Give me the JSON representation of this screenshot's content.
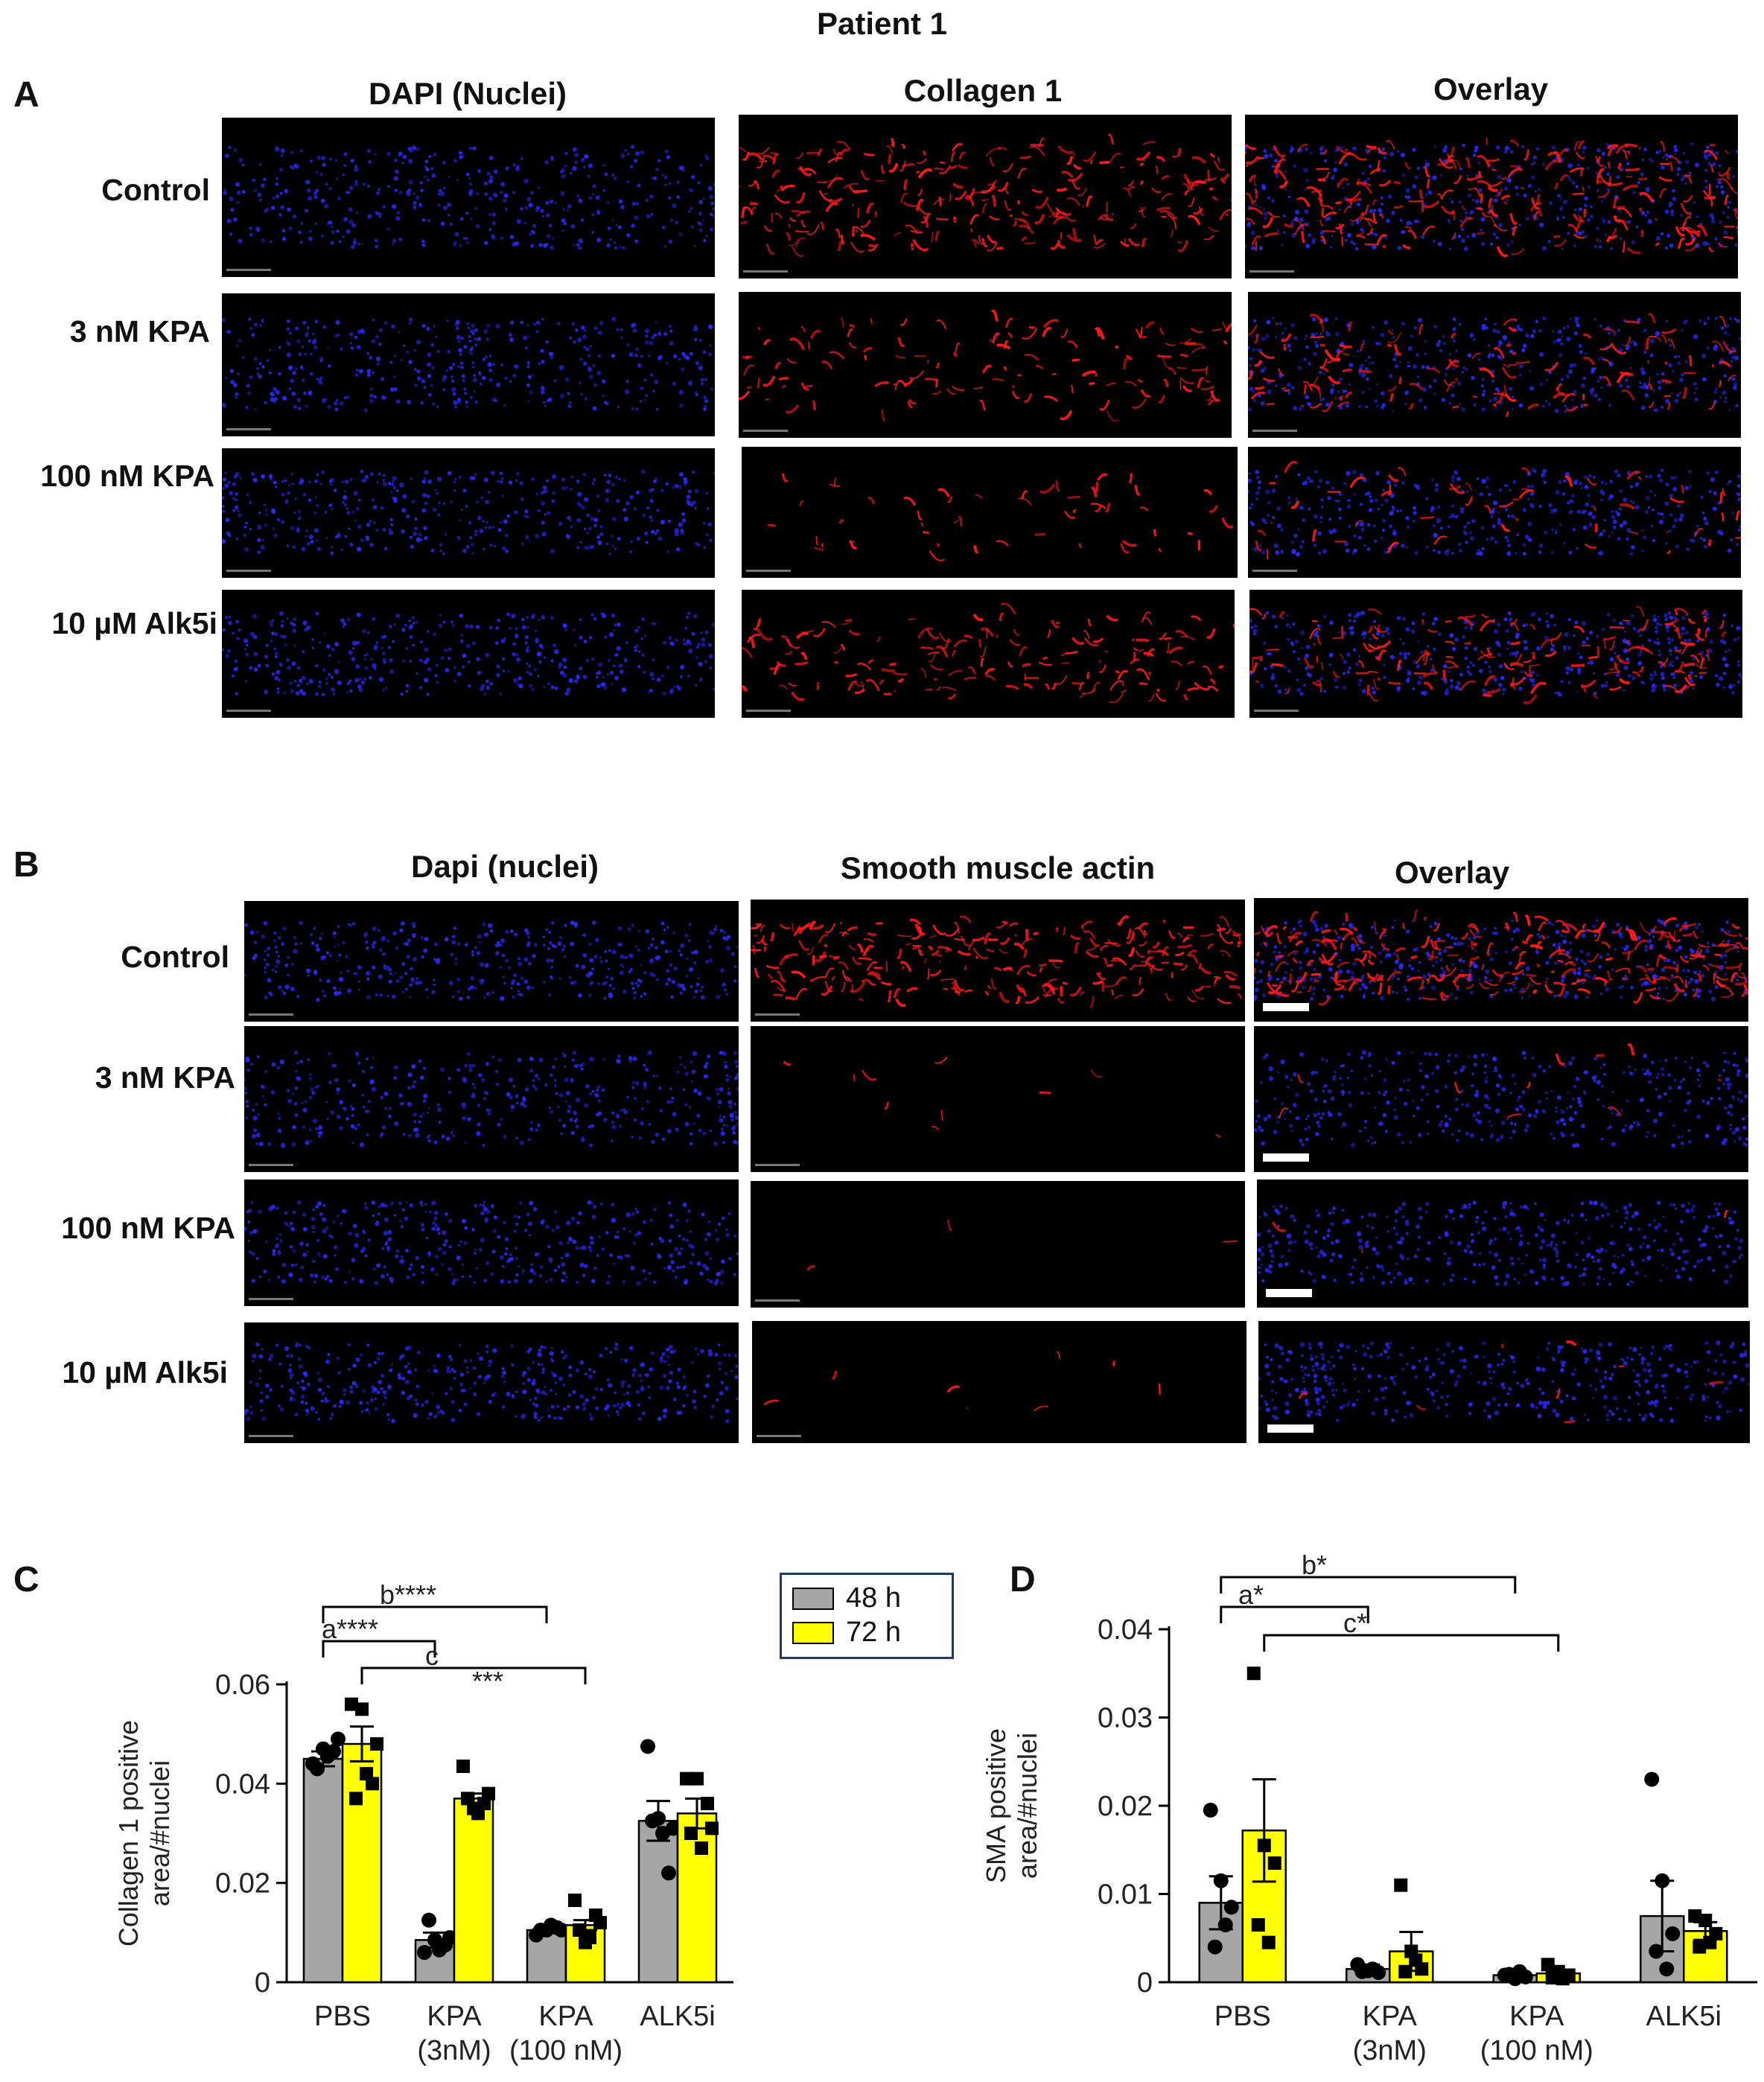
{
  "title": "Patient 1",
  "panel_a": {
    "letter": "A",
    "columns": [
      "DAPI (Nuclei)",
      "Collagen 1",
      "Overlay"
    ],
    "rows": [
      "Control",
      "3 nM KPA",
      "100 nM KPA",
      "10 µM Alk5i"
    ]
  },
  "panel_b": {
    "letter": "B",
    "columns": [
      "Dapi (nuclei)",
      "Smooth muscle actin",
      "Overlay"
    ],
    "rows": [
      "Control",
      "3 nM KPA",
      "100 nM KPA",
      "10 µM Alk5i"
    ]
  },
  "legend": {
    "items": [
      {
        "label": "48 h",
        "color": "#a6a6a6"
      },
      {
        "label": "72 h",
        "color": "#ffff00"
      }
    ]
  },
  "colors": {
    "nuclei": "#2a2aff",
    "stain": "#ff1a1a",
    "bar_48h": "#a6a6a6",
    "bar_72h": "#ffff00"
  },
  "chart_data": [
    {
      "panel": "C",
      "type": "bar",
      "ylabel": [
        "Collagen 1 positive",
        "area/#nuclei"
      ],
      "categories": [
        [
          "PBS"
        ],
        [
          "KPA",
          "(3nM)"
        ],
        [
          "KPA",
          "(100 nM)"
        ],
        [
          "ALK5i"
        ]
      ],
      "ylim": [
        0,
        0.06
      ],
      "yticks": [
        0,
        0.02,
        0.04,
        0.06
      ],
      "ytick_labels": [
        "0",
        "0.02",
        "0.04",
        "0.06"
      ],
      "series": [
        {
          "name": "48 h",
          "values": [
            0.045,
            0.0085,
            0.0105,
            0.0325
          ],
          "errors": [
            0.0015,
            0.0015,
            0.0005,
            0.004
          ],
          "points": [
            [
              0.044,
              0.047,
              0.0465,
              0.043,
              0.0455,
              0.049
            ],
            [
              0.006,
              0.0085,
              0.0075,
              0.0125,
              0.0065,
              0.009
            ],
            [
              0.0095,
              0.0105,
              0.011,
              0.0105,
              0.0115,
              0.0105
            ],
            [
              0.0475,
              0.033,
              0.022,
              0.0325,
              0.03,
              0.031
            ]
          ]
        },
        {
          "name": "72 h",
          "values": [
            0.048,
            0.037,
            0.0115,
            0.034
          ],
          "errors": [
            0.0035,
            0.001,
            0.001,
            0.003
          ],
          "points": [
            [
              0.056,
              0.055,
              0.04,
              0.037,
              0.042,
              0.048
            ],
            [
              0.0435,
              0.035,
              0.036,
              0.037,
              0.034,
              0.038
            ],
            [
              0.0165,
              0.008,
              0.0135,
              0.0105,
              0.009,
              0.012
            ],
            [
              0.041,
              0.041,
              0.036,
              0.03,
              0.027,
              0.031
            ]
          ]
        }
      ],
      "significance": [
        {
          "label": "a****",
          "from": [
            0,
            0
          ],
          "to": [
            1,
            0
          ]
        },
        {
          "label": "b****",
          "from": [
            0,
            0
          ],
          "to": [
            2,
            0
          ]
        },
        {
          "label": "c",
          "extra": "***",
          "from": [
            0,
            1
          ],
          "to": [
            2,
            1
          ]
        }
      ]
    },
    {
      "panel": "D",
      "type": "bar",
      "ylabel": [
        "SMA positive",
        "area/#nuclei"
      ],
      "categories": [
        [
          "PBS"
        ],
        [
          "KPA",
          "(3nM)"
        ],
        [
          "KPA",
          "(100 nM)"
        ],
        [
          "ALK5i"
        ]
      ],
      "ylim": [
        0,
        0.04
      ],
      "yticks": [
        0,
        0.01,
        0.02,
        0.03,
        0.04
      ],
      "ytick_labels": [
        "0",
        "0.01",
        "0.02",
        "0.03",
        "0.04"
      ],
      "series": [
        {
          "name": "48 h",
          "values": [
            0.009,
            0.0015,
            0.0008,
            0.0075
          ],
          "errors": [
            0.003,
            0.0005,
            0.0004,
            0.004
          ],
          "points": [
            [
              0.0195,
              0.0115,
              0.0085,
              0.004,
              0.0065
            ],
            [
              0.002,
              0.0013,
              0.0011,
              0.0012,
              0.0015
            ],
            [
              0.0008,
              0.0004,
              0.0006,
              0.0009,
              0.0012
            ],
            [
              0.023,
              0.0115,
              0.0055,
              0.0035,
              0.0015
            ]
          ]
        },
        {
          "name": "72 h",
          "values": [
            0.0172,
            0.0035,
            0.001,
            0.0058
          ],
          "errors": [
            0.0058,
            0.0022,
            0.0004,
            0.001
          ],
          "points": [
            [
              0.035,
              0.0155,
              0.0135,
              0.0065,
              0.0045
            ],
            [
              0.011,
              0.0035,
              0.0015,
              0.0012,
              0.0025
            ],
            [
              0.002,
              0.0012,
              0.0008,
              0.0005,
              0.0004
            ],
            [
              0.0075,
              0.007,
              0.0055,
              0.004,
              0.0045
            ]
          ]
        }
      ],
      "significance": [
        {
          "label": "b*",
          "from": [
            0,
            0
          ],
          "to": [
            2,
            0
          ]
        },
        {
          "label": "a*",
          "from": [
            0,
            0
          ],
          "to": [
            1,
            0
          ]
        },
        {
          "label": "c*",
          "from": [
            0,
            1
          ],
          "to": [
            2,
            1
          ]
        }
      ]
    }
  ]
}
